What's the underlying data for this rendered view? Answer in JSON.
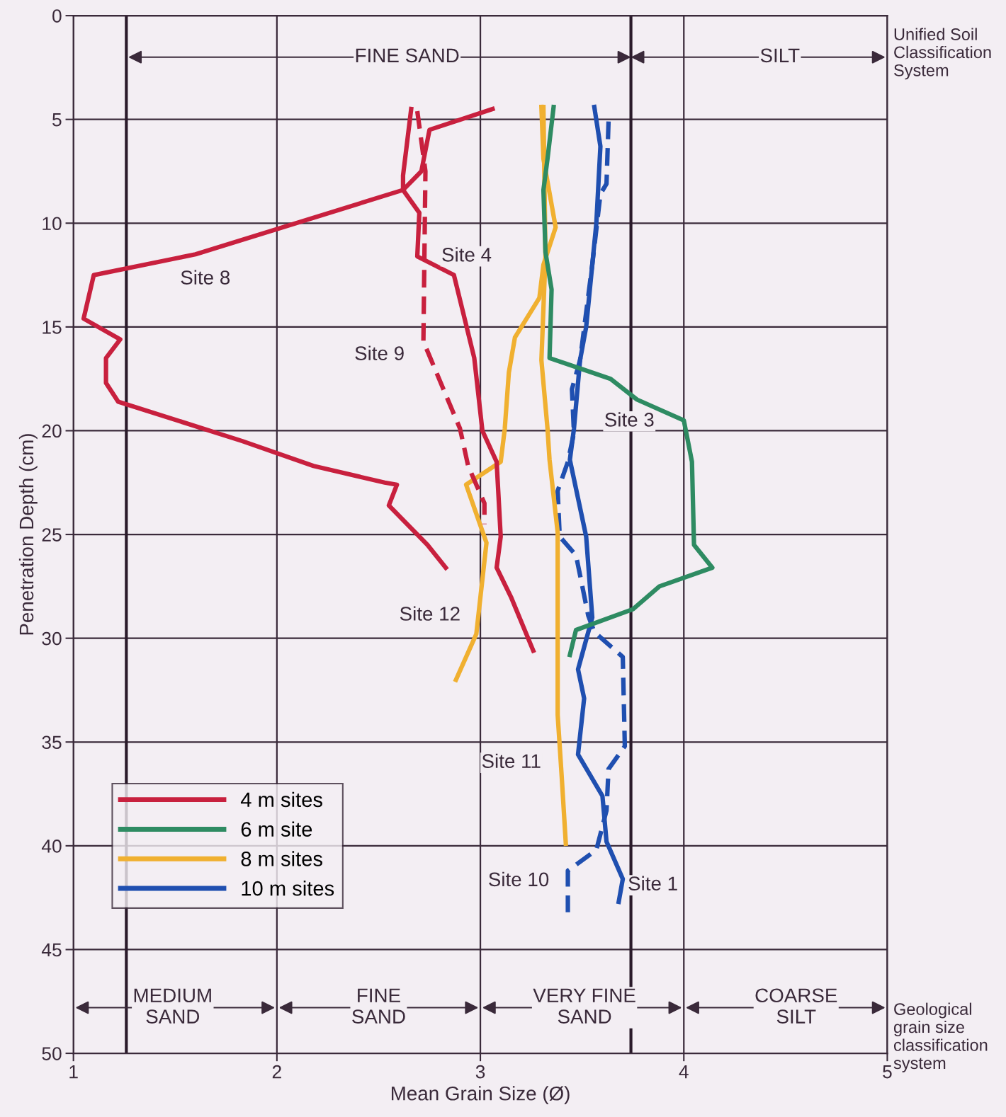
{
  "chart_data": {
    "type": "line",
    "xlabel": "Mean Grain Size (Ø)",
    "ylabel": "Penetration Depth (cm)",
    "xlim": [
      1,
      5
    ],
    "ylim": [
      50,
      0
    ],
    "xticks": [
      1,
      2,
      3,
      4,
      5
    ],
    "yticks": [
      0,
      5,
      10,
      15,
      20,
      25,
      30,
      35,
      40,
      45,
      50
    ],
    "grid": true,
    "legend": "bottom left",
    "series": [
      {
        "name": "4 m sites",
        "color": "#c8203e",
        "line_style": "solid",
        "x": [
          3.06,
          2.75,
          2.71,
          2.62,
          1.6,
          1.1,
          1.05,
          1.23,
          1.16,
          1.16,
          1.22,
          1.83,
          2.18,
          2.53,
          2.59,
          2.55,
          2.74,
          2.83
        ],
        "values": [
          4.5,
          5.5,
          7.5,
          8.4,
          11.5,
          12.5,
          14.6,
          15.6,
          16.5,
          17.7,
          18.6,
          20.5,
          21.7,
          22.5,
          22.6,
          23.6,
          25.5,
          26.6
        ]
      },
      {
        "color": "#c8203e",
        "line_style": "solid",
        "x": [
          2.66,
          2.62,
          2.62,
          2.7,
          2.69,
          2.87,
          2.97,
          3.01,
          3.08,
          3.1,
          3.08,
          3.15,
          3.26
        ],
        "values": [
          4.5,
          7.7,
          8.4,
          9.5,
          11.6,
          12.5,
          16.5,
          20.0,
          21.5,
          25.1,
          26.6,
          28.0,
          30.6
        ]
      },
      {
        "color": "#c8203e",
        "line_style": "dashed",
        "x": [
          2.69,
          2.73,
          2.72,
          2.9,
          2.94,
          3.02,
          3.02
        ],
        "values": [
          4.6,
          7.5,
          15.7,
          19.9,
          21.7,
          23.5,
          24.5
        ]
      },
      {
        "name": "6 m site",
        "color": "#2e8b62",
        "line_style": "solid",
        "x": [
          3.36,
          3.33,
          3.31,
          3.32,
          3.35,
          3.34,
          3.49,
          3.64,
          3.77,
          4.0,
          4.04,
          4.05,
          4.14,
          3.88,
          3.75,
          3.47,
          3.44
        ],
        "values": [
          4.4,
          6.9,
          8.4,
          11.4,
          13.2,
          16.5,
          17.0,
          17.5,
          18.5,
          19.5,
          21.5,
          25.5,
          26.6,
          27.5,
          28.6,
          29.6,
          30.8
        ]
      },
      {
        "name": "8 m sites",
        "color": "#f0b030",
        "line_style": "solid",
        "x": [
          3.3,
          3.31,
          3.37,
          3.31,
          3.29,
          3.17,
          3.14,
          3.12,
          3.1,
          2.93,
          3.03,
          2.98,
          2.88
        ],
        "values": [
          4.4,
          6.9,
          10.2,
          12.0,
          13.6,
          15.5,
          17.2,
          19.9,
          21.5,
          22.6,
          25.4,
          29.8,
          32.0
        ]
      },
      {
        "color": "#f0b030",
        "line_style": "solid",
        "x": [
          3.31,
          3.32,
          3.3,
          3.33,
          3.34,
          3.38,
          3.38,
          3.4,
          3.42
        ],
        "values": [
          4.4,
          11.6,
          16.6,
          19.9,
          21.4,
          24.9,
          33.7,
          36.7,
          39.9
        ]
      },
      {
        "name": "10 m sites",
        "color": "#1f4fb0",
        "line_style": "solid",
        "x": [
          3.56,
          3.59,
          3.57,
          3.55,
          3.52,
          3.49,
          3.46,
          3.44,
          3.52,
          3.55,
          3.48,
          3.51,
          3.48,
          3.6,
          3.62,
          3.7,
          3.68
        ],
        "values": [
          4.4,
          6.3,
          10.0,
          12.0,
          15.0,
          16.6,
          19.9,
          21.4,
          25.1,
          29.0,
          31.5,
          32.9,
          35.6,
          37.6,
          39.8,
          41.6,
          42.7
        ]
      },
      {
        "color": "#1f4fb0",
        "line_style": "dashed",
        "x": [
          3.63,
          3.62,
          3.59,
          3.55,
          3.49,
          3.45,
          3.46,
          3.43,
          3.38,
          3.39,
          3.47,
          3.53,
          3.56,
          3.7,
          3.71,
          3.63,
          3.62,
          3.57,
          3.43,
          3.43
        ],
        "values": [
          5.1,
          8.1,
          8.6,
          12.0,
          16.6,
          18.0,
          20.1,
          21.5,
          22.9,
          25.1,
          26.0,
          28.9,
          29.7,
          30.9,
          35.2,
          36.3,
          38.3,
          40.2,
          41.2,
          43.2
        ]
      }
    ],
    "ref_lines": [
      {
        "axis": "x",
        "value": 1.26,
        "color": "#2a1a2a"
      },
      {
        "axis": "x",
        "value": 3.74,
        "color": "#2a1a2a"
      }
    ],
    "annotations": [
      "Site 8",
      "Site 4",
      "Site 9",
      "Site 3",
      "Site 12",
      "Site 11",
      "Site 10",
      "Site 1",
      {
        "text": "FINE SAND",
        "x": 3.74,
        "y": 2.0
      },
      {
        "text": "SILT",
        "x": 3.74,
        "y": 2.0
      },
      "MEDIUM\nSAND",
      "FINE\nSAND",
      "VERY FINE\nSAND",
      "COARSE\nSILT",
      "Unified Soil\nClassification\nSystem",
      "Geological\ngrain size\nclassification\nsystem"
    ]
  }
}
